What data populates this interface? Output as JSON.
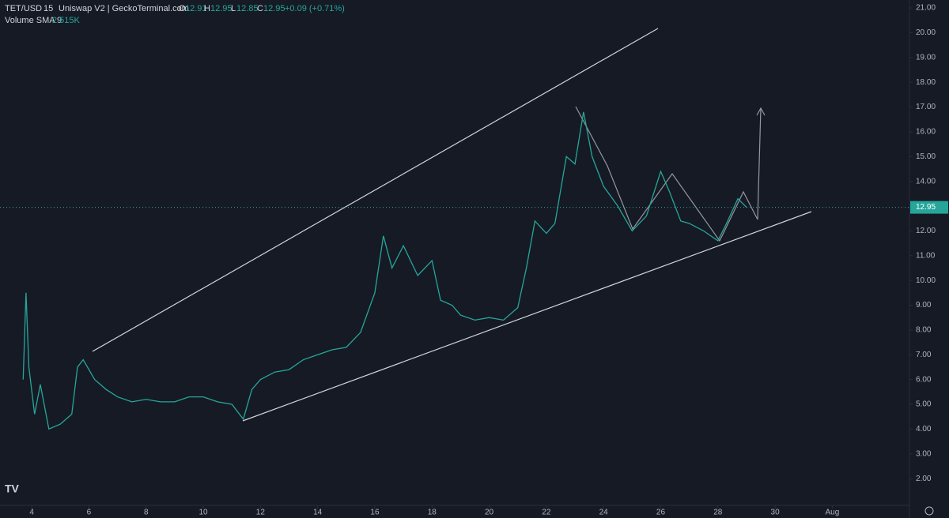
{
  "header": {
    "symbol": "TET/USD",
    "interval": "15",
    "source": "Uniswap V2 | GeckoTerminal.com",
    "o_label": "O",
    "open": "12.91",
    "h_label": "H",
    "high": "12.95",
    "l_label": "L",
    "low": "12.85",
    "c_label": "C",
    "close": "12.95",
    "change": "+0.09 (+0.71%)",
    "volume_label": "Volume SMA 9",
    "volume_value": "2.515K"
  },
  "chart_data": {
    "type": "line",
    "color": "#26a69a",
    "grid": false,
    "x": [
      3.7,
      3.8,
      3.9,
      4.1,
      4.3,
      4.6,
      5.0,
      5.4,
      5.6,
      5.8,
      6.2,
      6.6,
      7.0,
      7.5,
      8.0,
      8.5,
      9.0,
      9.5,
      10.0,
      10.5,
      11.0,
      11.4,
      11.7,
      12.0,
      12.5,
      13.0,
      13.5,
      14.0,
      14.5,
      15.0,
      15.5,
      16.0,
      16.3,
      16.6,
      17.0,
      17.5,
      18.0,
      18.3,
      18.7,
      19.0,
      19.5,
      20.0,
      20.5,
      21.0,
      21.3,
      21.6,
      22.0,
      22.3,
      22.7,
      23.0,
      23.3,
      23.6,
      24.0,
      24.5,
      25.0,
      25.5,
      26.0,
      26.3,
      26.7,
      27.0,
      27.5,
      28.0,
      28.3,
      28.7,
      29.0
    ],
    "values": [
      6.0,
      9.5,
      6.5,
      4.6,
      5.8,
      4.0,
      4.2,
      4.6,
      6.5,
      6.8,
      6.0,
      5.6,
      5.3,
      5.1,
      5.2,
      5.1,
      5.1,
      5.3,
      5.3,
      5.1,
      5.0,
      4.4,
      5.6,
      6.0,
      6.3,
      6.4,
      6.8,
      7.0,
      7.2,
      7.3,
      7.9,
      9.5,
      11.8,
      10.5,
      11.4,
      10.2,
      10.8,
      9.2,
      9.0,
      8.6,
      8.4,
      8.5,
      8.4,
      8.9,
      10.5,
      12.4,
      11.9,
      12.3,
      15.0,
      14.7,
      16.8,
      15.0,
      13.8,
      13.0,
      12.0,
      12.6,
      14.4,
      13.6,
      12.4,
      12.3,
      12.0,
      11.6,
      12.3,
      13.3,
      12.95
    ],
    "last_price": {
      "value": 12.95,
      "label": "12.95"
    },
    "xlim": [
      2.89,
      34.7
    ],
    "xticks": [
      4,
      6,
      8,
      10,
      12,
      14,
      16,
      18,
      20,
      22,
      24,
      26,
      28,
      30,
      {
        "value": 32,
        "label": "Aug"
      }
    ],
    "ylim": [
      0.92,
      21.32
    ],
    "yticks": [
      {
        "value": 2,
        "label": "2.00"
      },
      {
        "value": 3,
        "label": "3.00"
      },
      {
        "value": 4,
        "label": "4.00"
      },
      {
        "value": 5,
        "label": "5.00"
      },
      {
        "value": 6,
        "label": "6.00"
      },
      {
        "value": 7,
        "label": "7.00"
      },
      {
        "value": 8,
        "label": "8.00"
      },
      {
        "value": 9,
        "label": "9.00"
      },
      {
        "value": 10,
        "label": "10.00"
      },
      {
        "value": 11,
        "label": "11.00"
      },
      {
        "value": 12,
        "label": "12.00"
      },
      {
        "value": 13,
        "label": "13.00"
      },
      {
        "value": 14,
        "label": "14.00"
      },
      {
        "value": 15,
        "label": "15.00"
      },
      {
        "value": 16,
        "label": "16.00"
      },
      {
        "value": 17,
        "label": "17.00"
      },
      {
        "value": 18,
        "label": "18.00"
      },
      {
        "value": 19,
        "label": "19.00"
      },
      {
        "value": 20,
        "label": "20.00"
      },
      {
        "value": 21,
        "label": "21.00"
      }
    ]
  }
}
